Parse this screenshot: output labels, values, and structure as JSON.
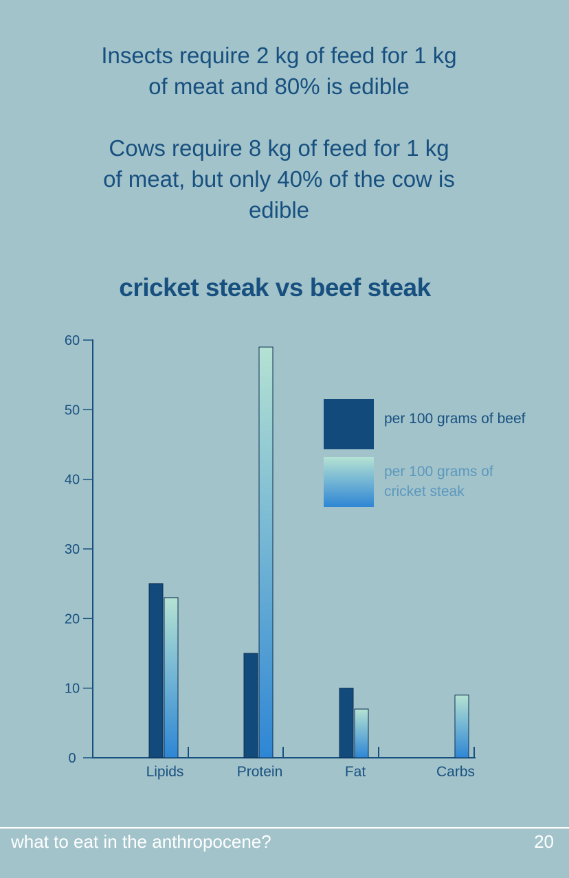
{
  "intro": {
    "line1": "Insects require 2 kg of feed for 1 kg of meat and 80% is edible",
    "line2": "Cows require 8 kg of feed for 1 kg of meat, but only 40% of the cow is edible"
  },
  "chart_data": {
    "type": "bar",
    "title": "cricket steak vs beef steak",
    "categories": [
      "Lipids",
      "Protein",
      "Fat",
      "Carbs"
    ],
    "series": [
      {
        "name": "per 100 grams of beef",
        "values": [
          25,
          15,
          10,
          0
        ],
        "color": "#124a7c"
      },
      {
        "name": "per 100 grams of cricket steak",
        "values": [
          23,
          59,
          7,
          9
        ],
        "color_top": "#b5e2d3",
        "color_bottom": "#2e86d4"
      }
    ],
    "ylim": [
      0,
      60
    ],
    "yticks": [
      0,
      10,
      20,
      30,
      40,
      50,
      60
    ],
    "xlabel": "",
    "ylabel": "",
    "grid": false,
    "legend_position": "top-right",
    "legend_lines": [
      [
        "per 100 grams of beef"
      ],
      [
        "per 100 grams of",
        "cricket steak"
      ]
    ]
  },
  "footer": {
    "text": "what to eat in the anthropocene?",
    "page": "20"
  }
}
